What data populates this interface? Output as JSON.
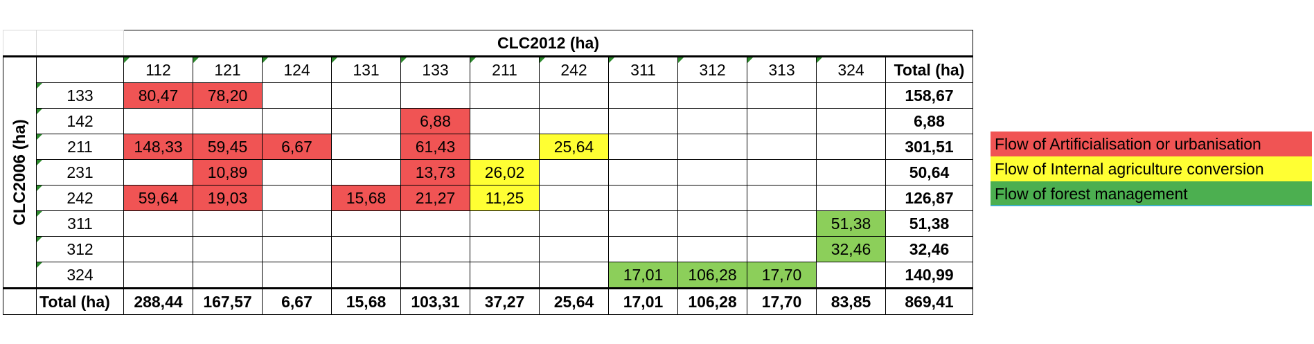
{
  "col_header_title": "CLC2012 (ha)",
  "row_header_title": "CLC2006 (ha)",
  "columns": [
    "112",
    "121",
    "124",
    "131",
    "133",
    "211",
    "242",
    "311",
    "312",
    "313",
    "324"
  ],
  "total_label": "Total (ha)",
  "rows": [
    {
      "code": "133",
      "cells": [
        "80,47",
        "78,20",
        "",
        "",
        "",
        "",
        "",
        "",
        "",
        "",
        ""
      ],
      "colors": [
        "red",
        "red",
        "",
        "",
        "",
        "",
        "",
        "",
        "",
        "",
        ""
      ],
      "total": "158,67"
    },
    {
      "code": "142",
      "cells": [
        "",
        "",
        "",
        "",
        "6,88",
        "",
        "",
        "",
        "",
        "",
        ""
      ],
      "colors": [
        "",
        "",
        "",
        "",
        "red",
        "",
        "",
        "",
        "",
        "",
        ""
      ],
      "total": "6,88"
    },
    {
      "code": "211",
      "cells": [
        "148,33",
        "59,45",
        "6,67",
        "",
        "61,43",
        "",
        "25,64",
        "",
        "",
        "",
        ""
      ],
      "colors": [
        "red",
        "red",
        "red",
        "",
        "red",
        "",
        "yellow",
        "",
        "",
        "",
        ""
      ],
      "total": "301,51"
    },
    {
      "code": "231",
      "cells": [
        "",
        "10,89",
        "",
        "",
        "13,73",
        "26,02",
        "",
        "",
        "",
        "",
        ""
      ],
      "colors": [
        "",
        "red",
        "",
        "",
        "red",
        "yellow",
        "",
        "",
        "",
        "",
        ""
      ],
      "total": "50,64"
    },
    {
      "code": "242",
      "cells": [
        "59,64",
        "19,03",
        "",
        "15,68",
        "21,27",
        "11,25",
        "",
        "",
        "",
        "",
        ""
      ],
      "colors": [
        "red",
        "red",
        "",
        "red",
        "red",
        "yellow",
        "",
        "",
        "",
        "",
        ""
      ],
      "total": "126,87"
    },
    {
      "code": "311",
      "cells": [
        "",
        "",
        "",
        "",
        "",
        "",
        "",
        "",
        "",
        "",
        "51,38"
      ],
      "colors": [
        "",
        "",
        "",
        "",
        "",
        "",
        "",
        "",
        "",
        "",
        "green"
      ],
      "total": "51,38"
    },
    {
      "code": "312",
      "cells": [
        "",
        "",
        "",
        "",
        "",
        "",
        "",
        "",
        "",
        "",
        "32,46"
      ],
      "colors": [
        "",
        "",
        "",
        "",
        "",
        "",
        "",
        "",
        "",
        "",
        "green"
      ],
      "total": "32,46"
    },
    {
      "code": "324",
      "cells": [
        "",
        "",
        "",
        "",
        "",
        "",
        "",
        "17,01",
        "106,28",
        "17,70",
        ""
      ],
      "colors": [
        "",
        "",
        "",
        "",
        "",
        "",
        "",
        "green",
        "green",
        "green",
        ""
      ],
      "total": "140,99"
    }
  ],
  "totals_row": [
    "288,44",
    "167,57",
    "6,67",
    "15,68",
    "103,31",
    "37,27",
    "25,64",
    "17,01",
    "106,28",
    "17,70",
    "83,85"
  ],
  "grand_total": "869,41",
  "legend": [
    {
      "label": "Flow of Artificialisation or urbanisation",
      "color": "#f05454"
    },
    {
      "label": "Flow of Internal agriculture conversion",
      "color": "#ffff33"
    },
    {
      "label": "Flow of forest management",
      "color": "#4caf50"
    }
  ]
}
